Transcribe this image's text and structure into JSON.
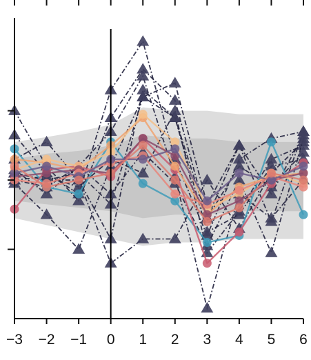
{
  "chart_data": {
    "type": "line",
    "title": "",
    "xlabel": "",
    "ylabel": "",
    "x_ticks": [
      -3,
      -2,
      -1,
      0,
      1,
      2,
      3,
      4,
      5,
      6
    ],
    "xlim": [
      -3,
      6
    ],
    "ylim": [
      -2.0,
      2.3
    ],
    "y_ticks": [
      1.0,
      0.0,
      -1.0
    ],
    "grid": false,
    "vertical_reference_x": 0,
    "band": {
      "color": "#b4b4b4",
      "upper_outer": [
        0.55,
        0.62,
        0.7,
        0.8,
        1.05,
        1.0,
        1.0,
        0.95,
        0.95,
        0.95
      ],
      "upper_inner": [
        0.3,
        0.38,
        0.42,
        0.5,
        0.65,
        0.6,
        0.6,
        0.55,
        0.55,
        0.55
      ],
      "lower_inner": [
        -0.3,
        -0.35,
        -0.4,
        -0.45,
        -0.55,
        -0.5,
        -0.5,
        -0.45,
        -0.45,
        -0.45
      ],
      "lower_outer": [
        -0.55,
        -0.65,
        -0.75,
        -0.85,
        -0.95,
        -0.9,
        -0.9,
        -0.85,
        -0.85,
        -0.85
      ]
    },
    "dashed_series": [
      {
        "values": [
          0.65,
          0.1,
          -0.2,
          1.3,
          2.0,
          0.3,
          -0.8,
          0.3,
          0.6,
          0.7
        ],
        "marker": "triangle"
      },
      {
        "values": [
          1.0,
          0.2,
          -0.3,
          0.9,
          1.6,
          1.15,
          -0.55,
          0.5,
          -0.2,
          0.65
        ],
        "marker": "triangle"
      },
      {
        "values": [
          0.3,
          0.55,
          0.0,
          -0.85,
          1.3,
          0.9,
          -0.75,
          -0.5,
          0.2,
          0.3
        ],
        "marker": "triangle"
      },
      {
        "values": [
          -0.05,
          -0.5,
          -1.0,
          0.2,
          1.2,
          1.4,
          -0.35,
          0.5,
          -0.6,
          0.7
        ],
        "marker": "triangle"
      },
      {
        "values": [
          0.1,
          0.0,
          0.0,
          -1.2,
          -0.85,
          -0.85,
          0.0,
          -0.7,
          0.1,
          0.55
        ],
        "marker": "triangle"
      },
      {
        "values": [
          0.15,
          -0.2,
          0.2,
          0.7,
          1.5,
          0.05,
          -1.85,
          -0.2,
          -0.55,
          0.0
        ],
        "marker": "triangle"
      },
      {
        "values": [
          0.0,
          0.05,
          -0.1,
          0.3,
          0.1,
          1.0,
          -1.05,
          -0.45,
          0.3,
          0.5
        ],
        "marker": "triangle"
      },
      {
        "values": [
          0.1,
          0.0,
          0.1,
          -0.35,
          1.2,
          0.9,
          -0.55,
          0.2,
          -0.1,
          0.4
        ],
        "marker": "triangle"
      },
      {
        "values": [
          0.0,
          -0.1,
          0.2,
          -0.2,
          0.4,
          -0.05,
          -0.95,
          0.0,
          -1.05,
          0.6
        ],
        "marker": "triangle"
      }
    ],
    "solid_series": [
      {
        "color": "#3f9bb8",
        "values": [
          0.45,
          -0.1,
          -0.2,
          0.55,
          -0.05,
          -0.3,
          -0.9,
          -0.8,
          0.55,
          -0.5
        ]
      },
      {
        "color": "#c95b6e",
        "values": [
          -0.42,
          0.15,
          0.2,
          0.05,
          0.6,
          0.15,
          -1.2,
          -0.75,
          -0.05,
          0.25
        ]
      },
      {
        "color": "#f0a371",
        "values": [
          0.3,
          0.25,
          0.15,
          0.5,
          0.9,
          0.2,
          -0.5,
          -0.1,
          0.05,
          0.1
        ]
      },
      {
        "color": "#f5c089",
        "values": [
          0.15,
          0.3,
          0.2,
          0.4,
          0.95,
          0.55,
          -0.4,
          -0.2,
          0.1,
          -0.05
        ]
      },
      {
        "color": "#8c4a6a",
        "values": [
          0.05,
          0.1,
          0.15,
          0.1,
          0.6,
          0.35,
          -0.5,
          -0.3,
          0.0,
          0.1
        ]
      },
      {
        "color": "#e8857a",
        "values": [
          0.0,
          -0.05,
          0.1,
          0.25,
          0.35,
          -0.2,
          -0.35,
          -0.15,
          0.05,
          -0.1
        ]
      },
      {
        "color": "#6b5c8a",
        "values": [
          0.1,
          0.2,
          0.05,
          0.3,
          0.3,
          0.45,
          -0.3,
          0.1,
          0.0,
          0.2
        ]
      },
      {
        "color": "#dc7a6e",
        "values": [
          0.2,
          -0.1,
          0.0,
          0.1,
          0.5,
          0.0,
          -0.6,
          -0.4,
          0.1,
          0.0
        ]
      }
    ]
  }
}
